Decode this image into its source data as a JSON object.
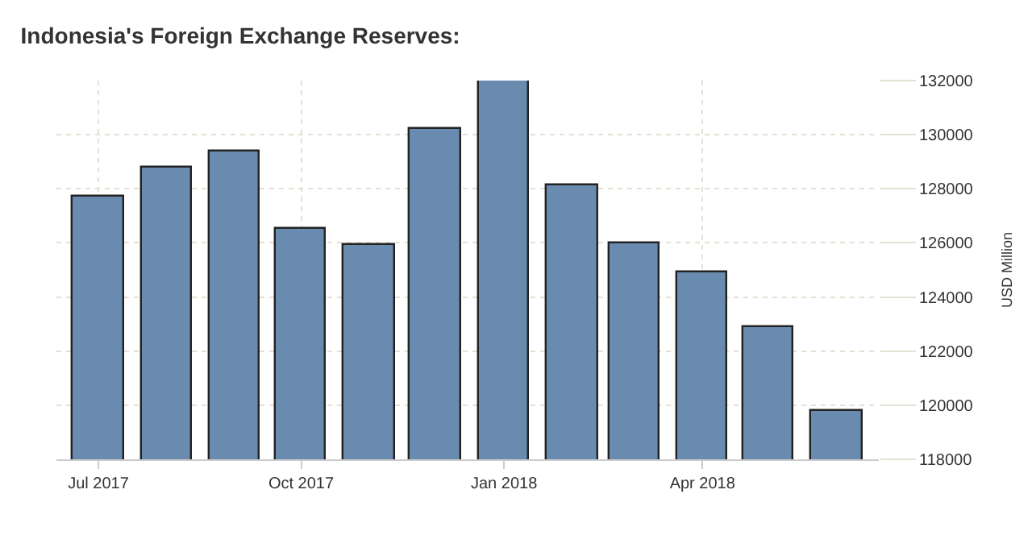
{
  "chart_data": {
    "type": "bar",
    "title": "Indonesia's Foreign Exchange Reserves:",
    "ylabel": "USD Million",
    "x": [
      "2017-07",
      "2017-08",
      "2017-09",
      "2017-10",
      "2017-11",
      "2017-12",
      "2018-01",
      "2018-02",
      "2018-03",
      "2018-04",
      "2018-05",
      "2018-06"
    ],
    "values": [
      127700,
      128800,
      129400,
      126500,
      125900,
      130200,
      131980,
      128100,
      126000,
      124900,
      122900,
      119800
    ],
    "color": "#6a8bb0",
    "xlim": [
      "2017-06-12",
      "2018-06-20"
    ],
    "xticks": [
      {
        "value": "2017-07",
        "label": "Jul 2017"
      },
      {
        "value": "2017-10",
        "label": "Oct 2017"
      },
      {
        "value": "2018-01",
        "label": "Jan 2018"
      },
      {
        "value": "2018-04",
        "label": "Apr 2018"
      }
    ],
    "ylim": [
      118000,
      132000
    ],
    "yticks": [
      118000,
      120000,
      122000,
      124000,
      126000,
      128000,
      130000,
      132000
    ],
    "grid": true,
    "legend": false
  }
}
